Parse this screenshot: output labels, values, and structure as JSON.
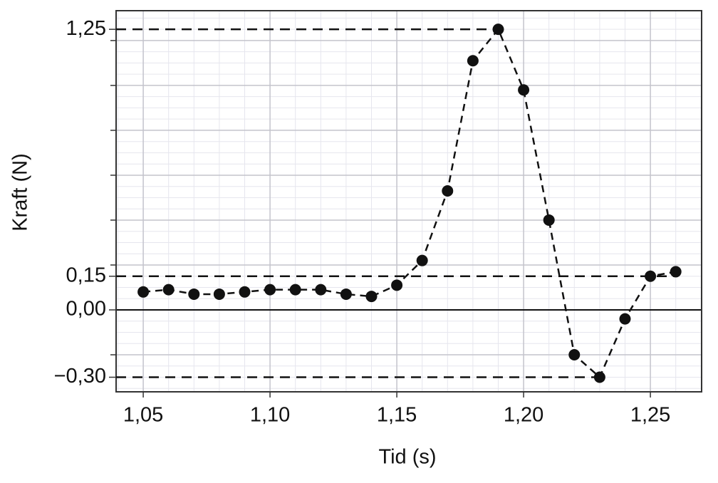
{
  "chart_data": {
    "type": "line",
    "x_label": "Tid (s)",
    "y_label": "Kraft (N)",
    "x": [
      1.05,
      1.06,
      1.07,
      1.08,
      1.09,
      1.1,
      1.11,
      1.12,
      1.13,
      1.14,
      1.15,
      1.16,
      1.17,
      1.18,
      1.19,
      1.2,
      1.21,
      1.22,
      1.23,
      1.24,
      1.25,
      1.26
    ],
    "series": [
      {
        "color": "#111111",
        "values": [
          0.08,
          0.09,
          0.07,
          0.07,
          0.08,
          0.09,
          0.09,
          0.09,
          0.07,
          0.06,
          0.11,
          0.22,
          0.53,
          1.11,
          1.25,
          0.98,
          0.4,
          -0.2,
          -0.3,
          -0.04,
          0.15,
          0.17
        ]
      }
    ],
    "xlim": [
      1.0393,
      1.2702
    ],
    "ylim": [
      -0.365,
      1.333
    ],
    "xticks": [
      {
        "value": 1.05,
        "label": "1,05"
      },
      {
        "value": 1.1,
        "label": "1,10"
      },
      {
        "value": 1.15,
        "label": "1,15"
      },
      {
        "value": 1.2,
        "label": "1,20"
      },
      {
        "value": 1.25,
        "label": "1,25"
      }
    ],
    "yticks": [
      {
        "value": -0.3,
        "label": "−0,30"
      },
      {
        "value": 0,
        "label": "0,00"
      },
      {
        "value": 0.15,
        "label": "0,15"
      },
      {
        "value": 1.25,
        "label": "1,25"
      }
    ],
    "y_gridlines": [
      -0.2,
      0.2,
      0.4,
      0.6,
      0.8,
      1.0,
      1.2
    ],
    "x_minor_step": 0.01,
    "y_minor_step": 0.05,
    "zero_line": true,
    "grid": true,
    "reference_lines": [
      {
        "y": 1.25,
        "x_end": 1.19
      },
      {
        "y": 0.15,
        "x_end": 1.26
      },
      {
        "y": -0.3,
        "x_end": 1.23
      }
    ]
  }
}
